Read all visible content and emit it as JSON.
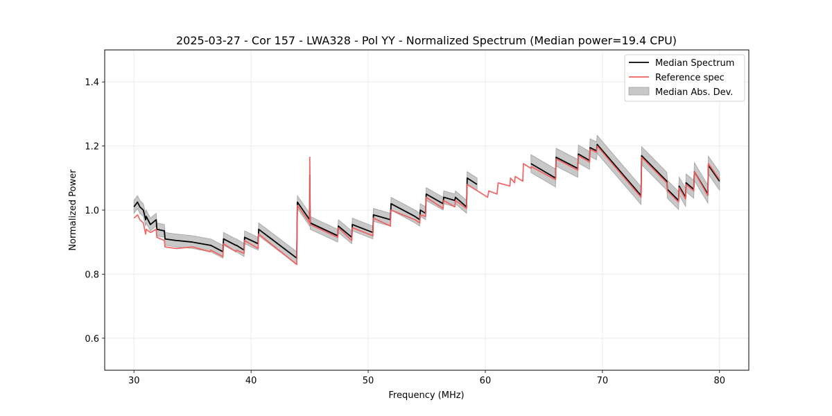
{
  "chart_data": {
    "type": "line",
    "title": "2025-03-27 - Cor 157 - LWA328 - Pol YY - Normalized Spectrum (Median power=19.4 CPU)",
    "xlabel": "Frequency (MHz)",
    "ylabel": "Normalized Power",
    "xlim": [
      27.5,
      82.5
    ],
    "ylim": [
      0.5,
      1.5
    ],
    "xticks": [
      30,
      40,
      50,
      60,
      70,
      80
    ],
    "yticks": [
      0.6,
      0.8,
      1.0,
      1.2,
      1.4
    ],
    "xtick_labels": [
      "30",
      "40",
      "50",
      "60",
      "70",
      "80"
    ],
    "ytick_labels": [
      "0.6",
      "0.8",
      "1.0",
      "1.2",
      "1.4"
    ],
    "grid": true,
    "legend_position": "top-right",
    "colors": {
      "median": "#000000",
      "reference": "#f06060",
      "band_fill": "#c8c8c8",
      "band_edge": "#a0a0a0",
      "grid": "#e6e6e6"
    },
    "series": [
      {
        "name": "Median Spectrum",
        "segments": [
          {
            "x": [
              30.0,
              30.3,
              30.5,
              30.8,
              31.0,
              31.05,
              31.4,
              31.9,
              31.95,
              32.6,
              32.65,
              33.6,
              33.65,
              35.0,
              36.5,
              36.55,
              37.6,
              37.65,
              38.7,
              38.75,
              39.4,
              39.45,
              40.6,
              40.65,
              43.9,
              43.95,
              45.0,
              45.01,
              45.05,
              47.4,
              47.45,
              48.6,
              48.65,
              50.4,
              50.45,
              51.9,
              51.95,
              54.0,
              54.4,
              54.45,
              54.9,
              54.95,
              56.4,
              56.45,
              57.4,
              57.45,
              58.4,
              58.45,
              59.3
            ],
            "y": [
              1.01,
              1.025,
              1.01,
              1.0,
              0.97,
              0.98,
              0.955,
              0.97,
              0.94,
              0.935,
              0.91,
              0.905,
              0.905,
              0.9,
              0.89,
              0.89,
              0.87,
              0.91,
              0.89,
              0.89,
              0.875,
              0.915,
              0.895,
              0.94,
              0.85,
              1.025,
              0.97,
              1.11,
              0.96,
              0.92,
              0.95,
              0.915,
              0.955,
              0.93,
              0.985,
              0.97,
              1.02,
              0.98,
              0.97,
              1.0,
              0.99,
              1.05,
              1.02,
              1.04,
              1.03,
              1.04,
              1.01,
              1.1,
              1.08
            ]
          },
          {
            "x": [
              63.9,
              66.0,
              66.05,
              67.9,
              67.95,
              68.9,
              68.95,
              69.5,
              69.55,
              73.3,
              73.35,
              75.5,
              75.55,
              76.5,
              76.55,
              77.1,
              77.15,
              77.8,
              77.85,
              79.0,
              79.05,
              80.0
            ],
            "y": [
              1.145,
              1.1,
              1.165,
              1.13,
              1.175,
              1.155,
              1.195,
              1.185,
              1.205,
              1.045,
              1.17,
              1.09,
              1.065,
              1.03,
              1.075,
              1.04,
              1.085,
              1.065,
              1.12,
              1.05,
              1.14,
              1.09
            ]
          }
        ]
      },
      {
        "name": "Reference spec",
        "segments": [
          {
            "x": [
              30.0,
              30.3,
              30.5,
              30.8,
              31.0,
              31.05,
              31.4,
              31.9,
              31.95,
              32.6,
              32.65,
              33.6,
              33.65,
              35.0,
              36.5,
              36.55,
              37.6,
              37.65,
              38.7,
              38.75,
              39.4,
              39.45,
              40.6,
              40.65,
              43.9,
              43.95,
              45.0,
              45.01,
              45.05,
              47.4,
              47.45,
              48.6,
              48.65,
              50.4,
              50.45,
              51.9,
              51.95,
              54.0,
              54.4,
              54.45,
              54.9,
              54.95,
              56.4,
              56.45,
              57.4,
              57.45,
              58.4,
              58.45,
              60.2,
              60.3,
              61.0,
              61.1,
              62.1,
              62.15,
              62.5,
              62.55,
              63.2,
              63.25,
              63.9,
              63.95,
              66.0,
              66.05,
              67.9,
              67.95,
              68.9,
              68.95,
              69.5,
              69.55,
              73.3,
              73.35,
              75.5,
              75.55,
              76.5,
              76.55,
              77.1,
              77.15,
              77.8,
              77.85,
              79.0,
              79.05,
              80.0
            ],
            "y": [
              0.975,
              0.985,
              0.97,
              0.96,
              0.925,
              0.94,
              0.93,
              0.94,
              0.915,
              0.905,
              0.885,
              0.88,
              0.88,
              0.885,
              0.87,
              0.875,
              0.855,
              0.895,
              0.87,
              0.875,
              0.865,
              0.905,
              0.88,
              0.925,
              0.83,
              1.015,
              0.96,
              1.165,
              0.955,
              0.915,
              0.945,
              0.905,
              0.945,
              0.92,
              0.975,
              0.95,
              1.0,
              0.97,
              0.96,
              0.985,
              0.98,
              1.04,
              1.005,
              1.03,
              1.01,
              1.03,
              1.005,
              1.08,
              1.04,
              1.06,
              1.05,
              1.085,
              1.075,
              1.1,
              1.085,
              1.105,
              1.09,
              1.145,
              1.13,
              1.135,
              1.095,
              1.16,
              1.125,
              1.17,
              1.15,
              1.19,
              1.18,
              1.2,
              1.04,
              1.165,
              1.085,
              1.06,
              1.025,
              1.07,
              1.035,
              1.08,
              1.06,
              1.12,
              1.045,
              1.145,
              1.095
            ]
          }
        ]
      },
      {
        "name": "Median Abs. Dev.",
        "type": "band",
        "half_width_segments": [
          {
            "x_range": [
              30.0,
              59.3
            ],
            "half_width": 0.02
          },
          {
            "x_range": [
              63.9,
              80.0
            ],
            "half_width": 0.028
          }
        ]
      }
    ],
    "legend": [
      "Median Spectrum",
      "Reference spec",
      "Median Abs. Dev."
    ]
  }
}
